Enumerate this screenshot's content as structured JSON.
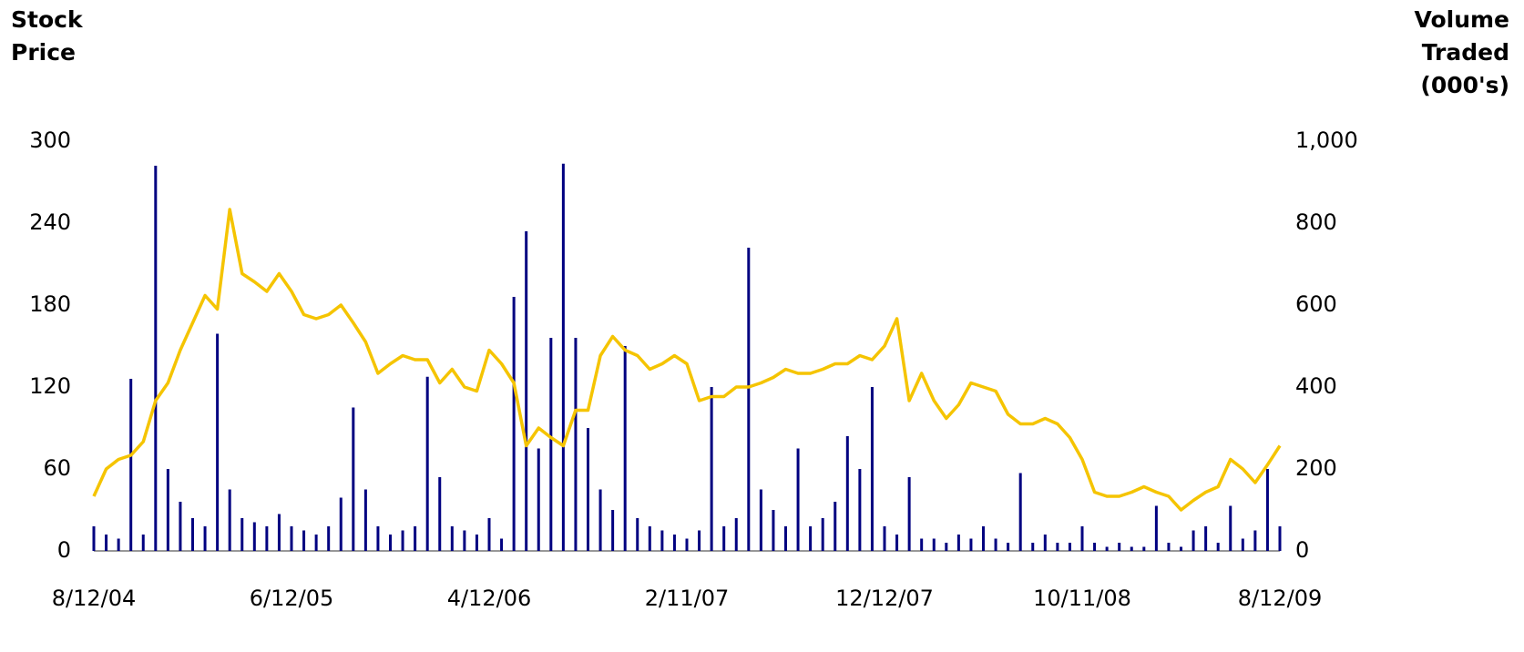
{
  "chart_data": {
    "type": "combo",
    "y_label": "Stock Price",
    "y2_label": "Volume Traded (000's)",
    "categories": [
      "8/12/04",
      null,
      null,
      null,
      null,
      null,
      null,
      null,
      null,
      null,
      null,
      null,
      null,
      null,
      null,
      null,
      "6/12/05",
      null,
      null,
      null,
      null,
      null,
      null,
      null,
      null,
      null,
      null,
      null,
      null,
      null,
      null,
      null,
      "4/12/06",
      null,
      null,
      null,
      null,
      null,
      null,
      null,
      null,
      null,
      null,
      null,
      null,
      null,
      null,
      null,
      "2/11/07",
      null,
      null,
      null,
      null,
      null,
      null,
      null,
      null,
      null,
      null,
      null,
      null,
      null,
      null,
      null,
      "12/12/07",
      null,
      null,
      null,
      null,
      null,
      null,
      null,
      null,
      null,
      null,
      null,
      null,
      null,
      null,
      null,
      "10/11/08",
      null,
      null,
      null,
      null,
      null,
      null,
      null,
      null,
      null,
      null,
      null,
      null,
      null,
      null,
      null,
      "8/12/09"
    ],
    "series": [
      {
        "type": "bar",
        "axis": "y2",
        "color": "#000080",
        "values": [
          60,
          40,
          30,
          420,
          40,
          940,
          200,
          120,
          80,
          60,
          530,
          150,
          80,
          70,
          60,
          90,
          60,
          50,
          40,
          60,
          130,
          350,
          150,
          60,
          40,
          50,
          60,
          425,
          180,
          60,
          50,
          40,
          80,
          30,
          620,
          780,
          250,
          520,
          945,
          520,
          300,
          150,
          100,
          500,
          80,
          60,
          50,
          40,
          30,
          50,
          400,
          60,
          80,
          740,
          150,
          100,
          60,
          250,
          60,
          80,
          120,
          280,
          200,
          400,
          60,
          40,
          180,
          30,
          30,
          20,
          40,
          30,
          60,
          30,
          20,
          190,
          20,
          40,
          20,
          20,
          60,
          20,
          10,
          20,
          10,
          10,
          110,
          20,
          10,
          50,
          60,
          20,
          110,
          30,
          50,
          200,
          60
        ]
      },
      {
        "type": "line",
        "axis": "y",
        "color": "#f5c400",
        "values": [
          40,
          60,
          67,
          70,
          80,
          110,
          123,
          147,
          167,
          187,
          177,
          250,
          203,
          197,
          190,
          203,
          190,
          173,
          170,
          173,
          180,
          167,
          153,
          130,
          137,
          143,
          140,
          140,
          123,
          133,
          120,
          117,
          147,
          137,
          123,
          77,
          90,
          83,
          77,
          103,
          103,
          143,
          157,
          147,
          143,
          133,
          137,
          143,
          137,
          110,
          113,
          113,
          120,
          120,
          123,
          127,
          133,
          130,
          130,
          133,
          137,
          137,
          143,
          140,
          150,
          170,
          110,
          130,
          110,
          97,
          107,
          123,
          120,
          117,
          100,
          93,
          93,
          97,
          93,
          83,
          67,
          43,
          40,
          40,
          43,
          47,
          43,
          40,
          30,
          37,
          43,
          47,
          67,
          60,
          50,
          63,
          77
        ]
      }
    ],
    "ylim": [
      0,
      300
    ],
    "yticks": [
      0,
      60,
      120,
      180,
      240,
      300
    ],
    "y2lim": [
      0,
      1000
    ],
    "y2ticks": [
      0,
      200,
      400,
      600,
      800,
      {
        "value": 1000,
        "label": "1,000"
      }
    ]
  }
}
